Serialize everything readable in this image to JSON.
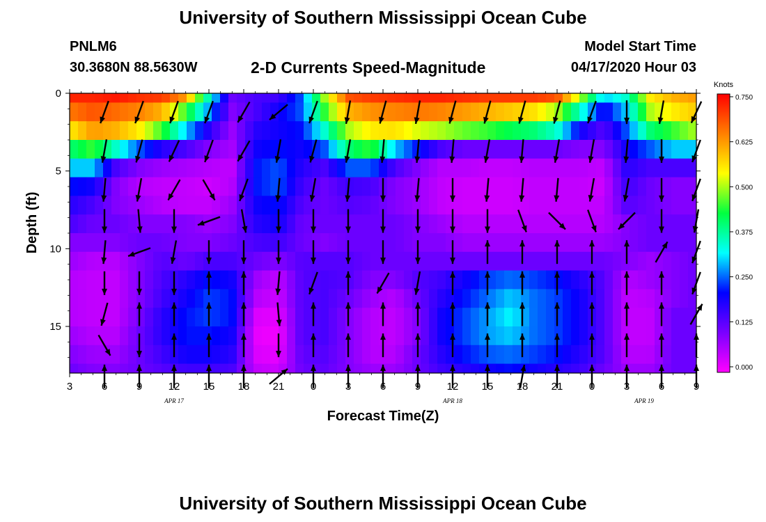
{
  "header": {
    "title": "University of Southern Mississippi Ocean Cube",
    "station": "PNLM6",
    "coords": "30.3680N 88.5630W",
    "subtitle": "2-D Currents Speed-Magnitude",
    "start_label": "Model Start Time",
    "start_value": "04/17/2020 Hour 03"
  },
  "footer": {
    "title": "University of Southern Mississippi Ocean Cube"
  },
  "chart_data": {
    "type": "heatmap",
    "title": "2-D Currents Speed-Magnitude",
    "xlabel": "Forecast Time(Z)",
    "ylabel": "Depth (ft)",
    "x_tick_labels": [
      "3",
      "6",
      "9",
      "12",
      "15",
      "18",
      "21",
      "0",
      "3",
      "6",
      "9",
      "12",
      "15",
      "18",
      "21",
      "0",
      "3",
      "6",
      "9"
    ],
    "x_range_hours": [
      0,
      54
    ],
    "date_labels": [
      {
        "label": "APR 17",
        "at_hour": 9
      },
      {
        "label": "APR 18",
        "at_hour": 33
      },
      {
        "label": "APR 19",
        "at_hour": 49.5
      }
    ],
    "y_ticks": [
      0,
      5,
      10,
      15
    ],
    "y_range": [
      0,
      18
    ],
    "y_inverted": true,
    "colorbar": {
      "unit": "Knots",
      "ticks": [
        "0.750",
        "0.625",
        "0.500",
        "0.375",
        "0.250",
        "0.125",
        "0.000"
      ],
      "range": [
        0,
        0.75
      ],
      "colors": [
        "#ff00ff",
        "#7a00ff",
        "#0000ff",
        "#00ffff",
        "#00ff40",
        "#ffff00",
        "#ff8000",
        "#ff0000"
      ]
    },
    "depths": [
      0,
      1.2,
      2.4,
      3.6,
      4.8,
      6.0,
      7.2,
      8.4,
      9.6,
      10.8,
      12.0,
      13.2,
      14.4,
      15.6,
      16.8,
      18.0
    ],
    "time_keys": [
      0,
      2,
      4,
      6,
      8,
      10,
      12,
      14,
      16,
      18,
      20,
      22,
      24,
      26,
      28,
      30,
      32,
      34,
      36,
      38,
      40,
      42,
      44,
      46,
      48,
      50,
      52,
      54
    ],
    "speed_rows": [
      [
        0.72,
        0.72,
        0.73,
        0.71,
        0.7,
        0.62,
        0.35,
        0.12,
        0.15,
        0.16,
        0.25,
        0.5,
        0.68,
        0.7,
        0.71,
        0.72,
        0.72,
        0.71,
        0.7,
        0.7,
        0.7,
        0.68,
        0.5,
        0.3,
        0.35,
        0.55,
        0.6,
        0.62
      ],
      [
        0.65,
        0.68,
        0.66,
        0.64,
        0.6,
        0.45,
        0.28,
        0.1,
        0.15,
        0.2,
        0.25,
        0.45,
        0.6,
        0.63,
        0.64,
        0.65,
        0.64,
        0.62,
        0.6,
        0.58,
        0.56,
        0.5,
        0.35,
        0.2,
        0.3,
        0.5,
        0.55,
        0.58
      ],
      [
        0.55,
        0.62,
        0.6,
        0.55,
        0.45,
        0.3,
        0.18,
        0.08,
        0.18,
        0.2,
        0.22,
        0.35,
        0.5,
        0.55,
        0.56,
        0.52,
        0.5,
        0.47,
        0.45,
        0.42,
        0.4,
        0.35,
        0.2,
        0.14,
        0.25,
        0.4,
        0.45,
        0.5
      ],
      [
        0.4,
        0.45,
        0.35,
        0.25,
        0.18,
        0.15,
        0.1,
        0.07,
        0.2,
        0.22,
        0.2,
        0.25,
        0.4,
        0.45,
        0.3,
        0.22,
        0.15,
        0.12,
        0.12,
        0.12,
        0.12,
        0.12,
        0.1,
        0.1,
        0.2,
        0.25,
        0.3,
        0.3
      ],
      [
        0.3,
        0.3,
        0.15,
        0.1,
        0.08,
        0.07,
        0.06,
        0.05,
        0.22,
        0.25,
        0.18,
        0.15,
        0.25,
        0.25,
        0.15,
        0.1,
        0.06,
        0.06,
        0.05,
        0.05,
        0.06,
        0.06,
        0.06,
        0.05,
        0.18,
        0.15,
        0.15,
        0.15
      ],
      [
        0.22,
        0.2,
        0.1,
        0.06,
        0.05,
        0.05,
        0.04,
        0.06,
        0.22,
        0.25,
        0.16,
        0.12,
        0.16,
        0.15,
        0.1,
        0.08,
        0.05,
        0.04,
        0.04,
        0.04,
        0.05,
        0.05,
        0.05,
        0.04,
        0.16,
        0.12,
        0.1,
        0.1
      ],
      [
        0.18,
        0.15,
        0.1,
        0.08,
        0.06,
        0.05,
        0.05,
        0.08,
        0.2,
        0.22,
        0.14,
        0.12,
        0.14,
        0.13,
        0.1,
        0.08,
        0.05,
        0.04,
        0.04,
        0.04,
        0.05,
        0.05,
        0.05,
        0.05,
        0.14,
        0.12,
        0.1,
        0.1
      ],
      [
        0.15,
        0.12,
        0.12,
        0.1,
        0.1,
        0.1,
        0.08,
        0.1,
        0.18,
        0.2,
        0.12,
        0.12,
        0.12,
        0.12,
        0.12,
        0.1,
        0.08,
        0.06,
        0.06,
        0.06,
        0.06,
        0.06,
        0.06,
        0.06,
        0.1,
        0.12,
        0.12,
        0.12
      ],
      [
        0.1,
        0.1,
        0.1,
        0.12,
        0.12,
        0.1,
        0.1,
        0.12,
        0.15,
        0.16,
        0.12,
        0.1,
        0.12,
        0.12,
        0.12,
        0.1,
        0.1,
        0.08,
        0.08,
        0.08,
        0.08,
        0.08,
        0.08,
        0.08,
        0.1,
        0.12,
        0.12,
        0.12
      ],
      [
        0.08,
        0.06,
        0.06,
        0.1,
        0.14,
        0.12,
        0.15,
        0.15,
        0.12,
        0.1,
        0.14,
        0.14,
        0.14,
        0.12,
        0.12,
        0.12,
        0.12,
        0.12,
        0.12,
        0.12,
        0.12,
        0.12,
        0.12,
        0.12,
        0.1,
        0.08,
        0.1,
        0.12
      ],
      [
        0.06,
        0.05,
        0.05,
        0.1,
        0.15,
        0.18,
        0.22,
        0.2,
        0.08,
        0.05,
        0.14,
        0.15,
        0.14,
        0.1,
        0.1,
        0.14,
        0.16,
        0.2,
        0.24,
        0.26,
        0.24,
        0.22,
        0.18,
        0.14,
        0.06,
        0.08,
        0.1,
        0.12
      ],
      [
        0.06,
        0.05,
        0.05,
        0.1,
        0.16,
        0.2,
        0.24,
        0.22,
        0.06,
        0.04,
        0.14,
        0.15,
        0.12,
        0.08,
        0.06,
        0.12,
        0.18,
        0.22,
        0.26,
        0.3,
        0.26,
        0.24,
        0.2,
        0.14,
        0.05,
        0.06,
        0.1,
        0.12
      ],
      [
        0.06,
        0.05,
        0.05,
        0.11,
        0.18,
        0.22,
        0.24,
        0.22,
        0.03,
        0.02,
        0.14,
        0.15,
        0.1,
        0.06,
        0.05,
        0.1,
        0.2,
        0.24,
        0.28,
        0.32,
        0.26,
        0.24,
        0.2,
        0.14,
        0.05,
        0.05,
        0.12,
        0.12
      ],
      [
        0.08,
        0.06,
        0.06,
        0.12,
        0.18,
        0.22,
        0.22,
        0.2,
        0.02,
        0.01,
        0.14,
        0.15,
        0.1,
        0.06,
        0.05,
        0.1,
        0.2,
        0.24,
        0.28,
        0.3,
        0.26,
        0.24,
        0.2,
        0.14,
        0.05,
        0.05,
        0.12,
        0.12
      ],
      [
        0.1,
        0.08,
        0.08,
        0.12,
        0.16,
        0.2,
        0.2,
        0.18,
        0.03,
        0.02,
        0.13,
        0.14,
        0.1,
        0.06,
        0.06,
        0.12,
        0.18,
        0.22,
        0.25,
        0.26,
        0.24,
        0.22,
        0.18,
        0.14,
        0.06,
        0.06,
        0.12,
        0.12
      ],
      [
        0.12,
        0.1,
        0.1,
        0.12,
        0.14,
        0.16,
        0.16,
        0.15,
        0.05,
        0.04,
        0.12,
        0.13,
        0.1,
        0.08,
        0.08,
        0.12,
        0.16,
        0.18,
        0.2,
        0.22,
        0.2,
        0.18,
        0.16,
        0.12,
        0.08,
        0.08,
        0.12,
        0.12
      ]
    ],
    "arrow_times": [
      3,
      6,
      9,
      12,
      15,
      18,
      21,
      24,
      27,
      30,
      33,
      36,
      39,
      42,
      45,
      48,
      51,
      54
    ],
    "arrow_depths": [
      0.5,
      3,
      5.5,
      7.5,
      9.5,
      11.5,
      13.5,
      15.5,
      17.5
    ],
    "arrow_dirs": [
      [
        200,
        200,
        200,
        200,
        210,
        230,
        200,
        190,
        195,
        190,
        195,
        195,
        195,
        195,
        200,
        180,
        190,
        205
      ],
      [
        190,
        195,
        205,
        200,
        210,
        190,
        195,
        190,
        185,
        185,
        185,
        190,
        185,
        190,
        190,
        185,
        180,
        200
      ],
      [
        185,
        190,
        210,
        150,
        200,
        185,
        190,
        185,
        180,
        185,
        180,
        185,
        185,
        185,
        190,
        190,
        180,
        200
      ],
      [
        180,
        175,
        180,
        250,
        170,
        180,
        180,
        180,
        180,
        180,
        180,
        180,
        160,
        135,
        160,
        225,
        180,
        190
      ],
      [
        185,
        250,
        190,
        180,
        180,
        180,
        180,
        180,
        180,
        180,
        180,
        0,
        0,
        0,
        0,
        0,
        30,
        200
      ],
      [
        180,
        180,
        180,
        0,
        0,
        185,
        200,
        0,
        210,
        190,
        0,
        0,
        0,
        0,
        0,
        0,
        0,
        200
      ],
      [
        195,
        0,
        0,
        0,
        0,
        175,
        0,
        0,
        0,
        0,
        0,
        0,
        0,
        0,
        0,
        0,
        0,
        30
      ],
      [
        150,
        180,
        0,
        0,
        0,
        180,
        0,
        0,
        0,
        0,
        0,
        0,
        0,
        0,
        0,
        0,
        0,
        0
      ],
      [
        0,
        0,
        0,
        0,
        0,
        50,
        0,
        0,
        0,
        0,
        0,
        0,
        10,
        0,
        0,
        0,
        0,
        0
      ]
    ]
  }
}
